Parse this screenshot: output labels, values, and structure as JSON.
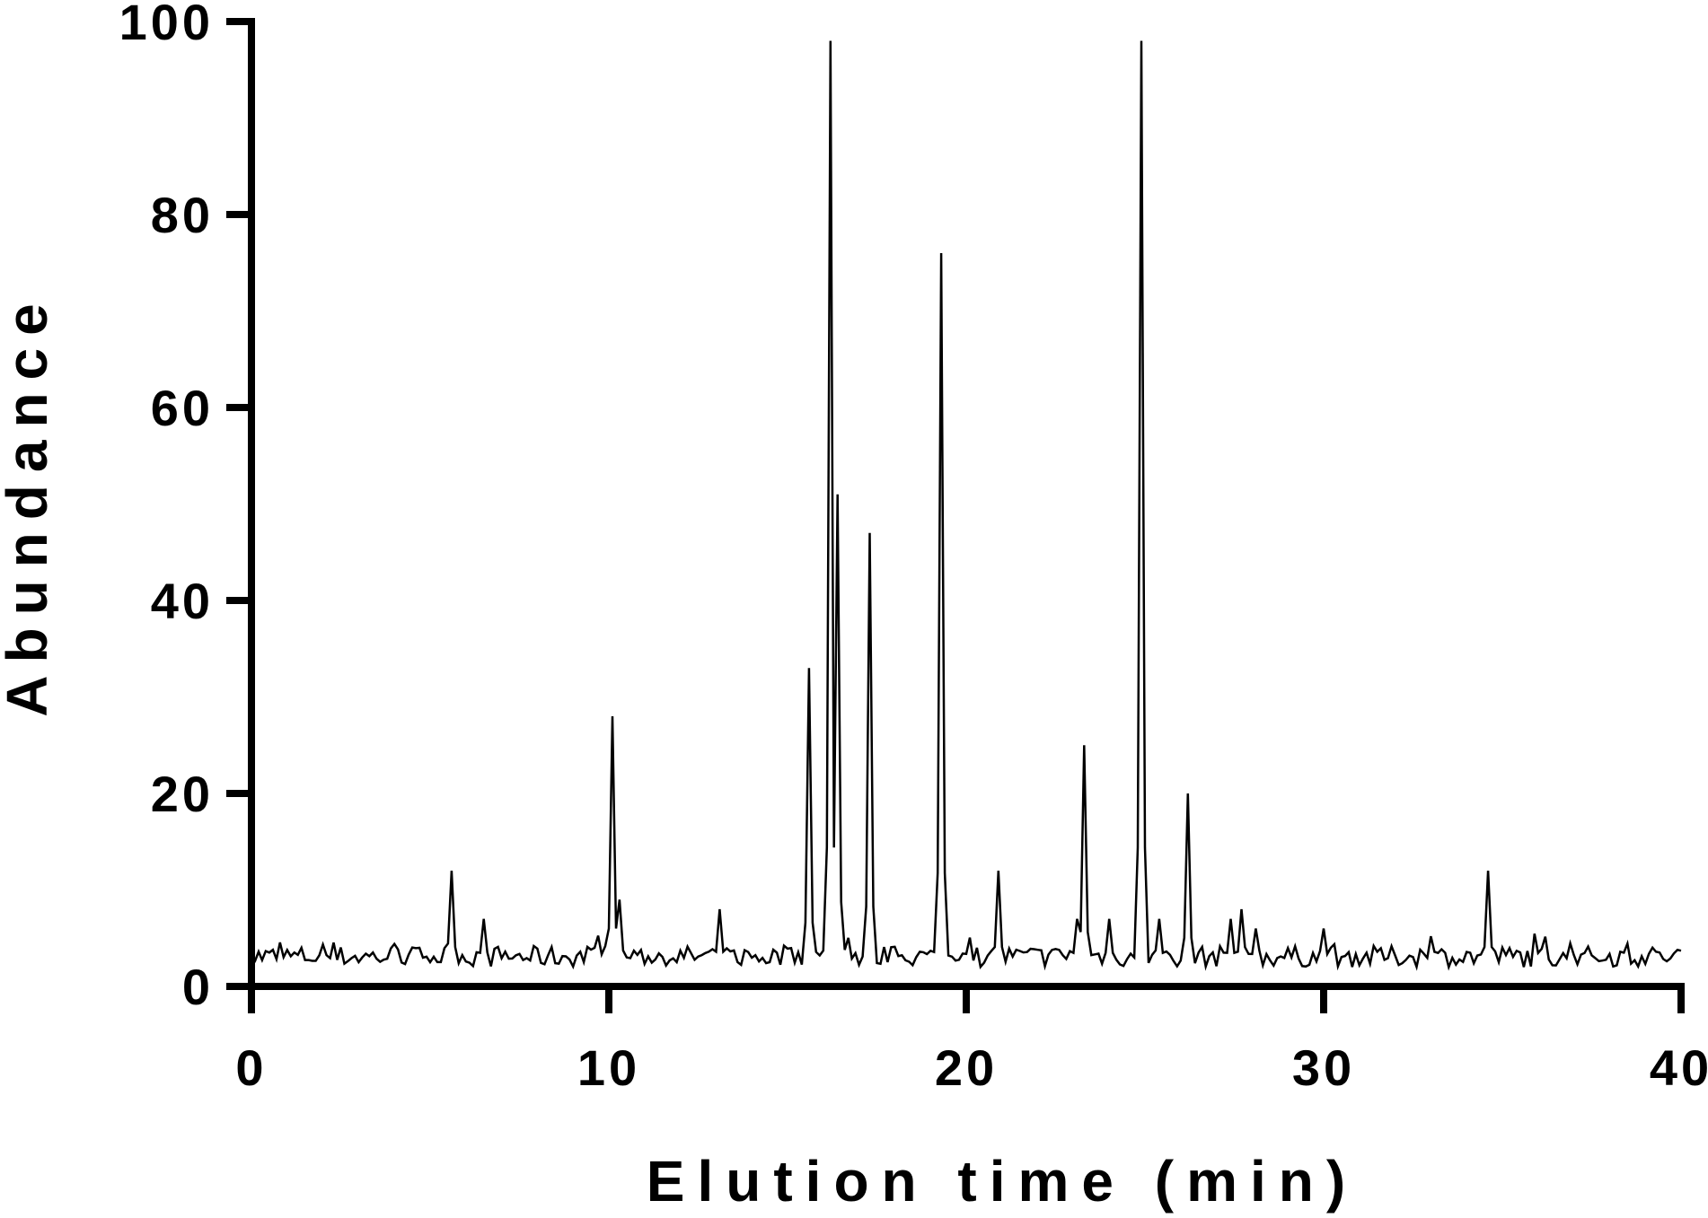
{
  "chart_data": {
    "type": "line",
    "title": "",
    "xlabel": "Elution time (min)",
    "ylabel": "Abundance",
    "xlim": [
      0,
      40
    ],
    "ylim": [
      0,
      100
    ],
    "xticks": [
      0,
      10,
      20,
      30,
      40
    ],
    "yticks": [
      0,
      20,
      40,
      60,
      80,
      100
    ],
    "xtick_labels": [
      "0",
      "10",
      "20",
      "30",
      "40"
    ],
    "ytick_labels": [
      "0",
      "20",
      "40",
      "60",
      "80",
      "100"
    ],
    "grid": false,
    "legend": false,
    "line_color": "#000000",
    "baseline_level": 3,
    "peaks": [
      {
        "x": 5.6,
        "y": 12
      },
      {
        "x": 6.5,
        "y": 7
      },
      {
        "x": 10.1,
        "y": 28
      },
      {
        "x": 10.3,
        "y": 9
      },
      {
        "x": 13.1,
        "y": 8
      },
      {
        "x": 15.6,
        "y": 33
      },
      {
        "x": 16.2,
        "y": 98
      },
      {
        "x": 16.4,
        "y": 51
      },
      {
        "x": 17.3,
        "y": 47
      },
      {
        "x": 19.3,
        "y": 76
      },
      {
        "x": 20.9,
        "y": 12
      },
      {
        "x": 23.1,
        "y": 7
      },
      {
        "x": 23.3,
        "y": 25
      },
      {
        "x": 24.0,
        "y": 7
      },
      {
        "x": 24.9,
        "y": 98
      },
      {
        "x": 25.4,
        "y": 7
      },
      {
        "x": 26.2,
        "y": 20
      },
      {
        "x": 27.4,
        "y": 7
      },
      {
        "x": 27.7,
        "y": 8
      },
      {
        "x": 28.1,
        "y": 6
      },
      {
        "x": 30.0,
        "y": 6
      },
      {
        "x": 34.6,
        "y": 12
      }
    ]
  }
}
